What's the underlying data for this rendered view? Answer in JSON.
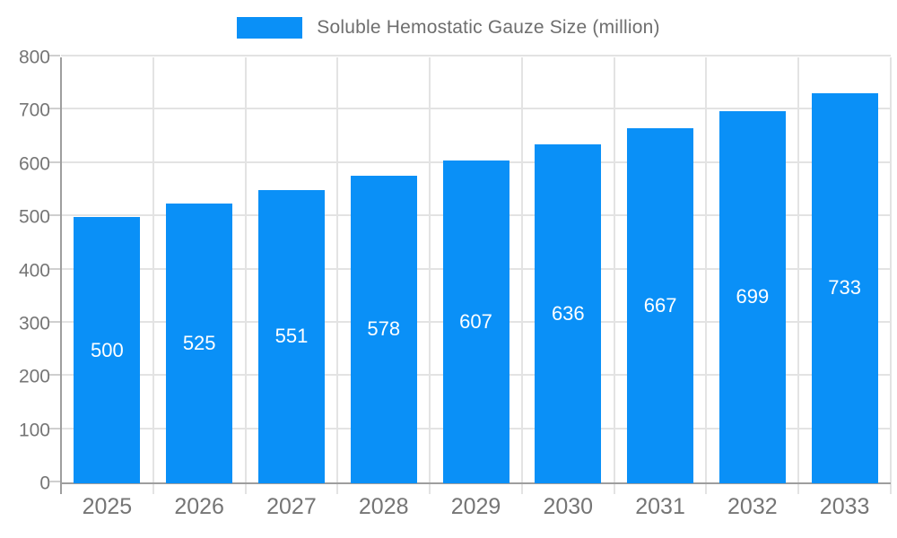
{
  "chart_data": {
    "type": "bar",
    "title": "",
    "legend_label": "Soluble Hemostatic Gauze Size (million)",
    "legend_position": "top-center",
    "categories": [
      "2025",
      "2026",
      "2027",
      "2028",
      "2029",
      "2030",
      "2031",
      "2032",
      "2033"
    ],
    "values": [
      500,
      525,
      551,
      578,
      607,
      636,
      667,
      699,
      733
    ],
    "xlabel": "",
    "ylabel": "",
    "ylim": [
      0,
      800
    ],
    "ytick_step": 100,
    "ytick_labels": [
      "0",
      "100",
      "200",
      "300",
      "400",
      "500",
      "600",
      "700",
      "800"
    ],
    "grid": true,
    "value_label_position": "inside-center"
  },
  "colors": {
    "bar": "#0a90f7",
    "grid_line": "#e3e3e3",
    "axis_line": "#9e9e9e",
    "tick": "#cfcfcf",
    "axis_label": "#757575",
    "legend_text": "#6e6e6e",
    "value_label": "#ffffff",
    "background": "#ffffff"
  }
}
